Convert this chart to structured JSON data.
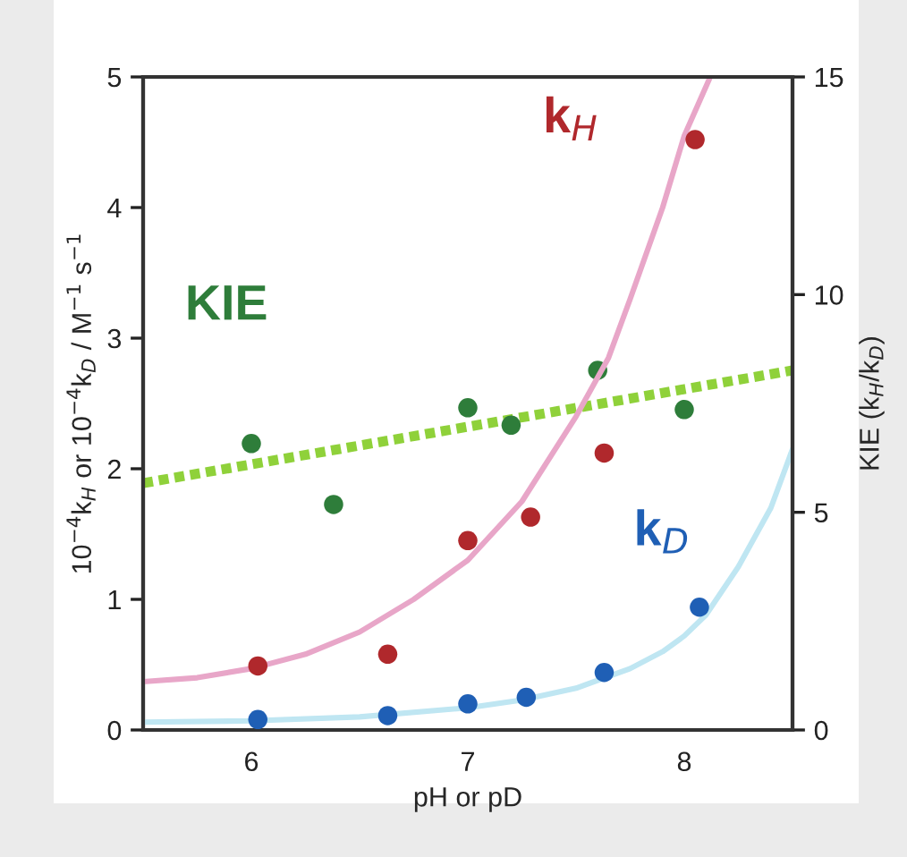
{
  "chart_data": {
    "type": "scatter",
    "xlabel": "pH or pD",
    "ylabel": "10$^{−4}$k$_{H}$ or 10$^{−4}$k$_{D}$ / M$^{−1}$ s$^{−1}$",
    "y2label": "KIE (k$_{H}$/k$_{D}$)",
    "xlim": [
      5.5,
      8.5
    ],
    "xticks": [
      6,
      7,
      8
    ],
    "ylim": [
      0,
      5
    ],
    "yticks": [
      0,
      1,
      2,
      3,
      4,
      5
    ],
    "y2lim": [
      0,
      15
    ],
    "y2ticks": [
      0,
      5,
      10,
      15
    ],
    "grid": false,
    "legend": false,
    "series": [
      {
        "type": "line",
        "color": "#e8a6c8",
        "x": [
          5.5,
          5.75,
          6.0,
          6.25,
          6.5,
          6.75,
          7.0,
          7.25,
          7.5,
          7.65,
          7.75,
          7.9,
          8.0,
          8.12
        ],
        "values": [
          0.37,
          0.4,
          0.47,
          0.58,
          0.75,
          1.0,
          1.3,
          1.75,
          2.4,
          2.85,
          3.3,
          4.0,
          4.55,
          5.0
        ]
      },
      {
        "type": "line",
        "color": "#bfe6f2",
        "x": [
          5.5,
          6.0,
          6.5,
          7.0,
          7.25,
          7.5,
          7.75,
          7.9,
          8.0,
          8.1,
          8.25,
          8.4,
          8.5
        ],
        "values": [
          0.06,
          0.07,
          0.1,
          0.17,
          0.23,
          0.32,
          0.47,
          0.6,
          0.72,
          0.88,
          1.25,
          1.7,
          2.15
        ]
      },
      {
        "type": "line",
        "axis": "y2",
        "color": "#8fd13a",
        "line_style": "dotted",
        "x": [
          5.5,
          8.5
        ],
        "values": [
          5.67,
          8.26
        ]
      },
      {
        "name": "k$_{H}$",
        "color": "#b0282c",
        "marker": "circle",
        "x": [
          6.03,
          6.63,
          7.0,
          7.29,
          7.63,
          8.05
        ],
        "values": [
          0.49,
          0.58,
          1.45,
          1.63,
          2.12,
          4.52
        ]
      },
      {
        "name": "k$_{D}$",
        "color": "#1f5fb5",
        "marker": "circle",
        "x": [
          6.03,
          6.63,
          7.0,
          7.27,
          7.63,
          8.07
        ],
        "values": [
          0.08,
          0.11,
          0.2,
          0.25,
          0.44,
          0.94
        ]
      },
      {
        "axis": "y2",
        "name": "KIE",
        "color": "#2e7d3a",
        "marker": "circle",
        "x": [
          6.0,
          6.38,
          7.0,
          7.2,
          7.6,
          8.0
        ],
        "values": [
          6.58,
          5.18,
          7.4,
          7.0,
          8.26,
          7.36
        ]
      }
    ]
  }
}
